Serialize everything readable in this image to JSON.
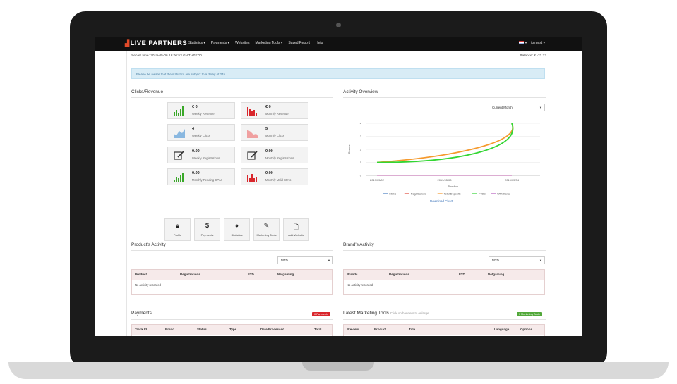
{
  "topnav": {
    "logo": "LIVE PARTNERS",
    "items": [
      "Statistics ▾",
      "Payments ▾",
      "Websites",
      "Marketing Tools ▾",
      "Saved Report",
      "Help"
    ],
    "user": "jointest ▾"
  },
  "header": {
    "server_time": "Server time: 2019-05-06 16:06:53 GMT +02:00",
    "balance": "Balance: € -21.73"
  },
  "alert": "Please be aware that the statistics are subject to a delay of 24h.",
  "clicks_revenue": {
    "title": "Clicks/Revenue",
    "stats": [
      {
        "value": "€ 0",
        "label": "Weekly Revenue",
        "color": "#3aa829"
      },
      {
        "value": "€ 0",
        "label": "Monthly Revenue",
        "color": "#d9262c"
      },
      {
        "value": "4",
        "label": "Weekly Clicks",
        "color": "#8ab8e0"
      },
      {
        "value": "5",
        "label": "Monthly Clicks",
        "color": "#f0a0a0"
      },
      {
        "value": "0.00",
        "label": "Weekly Registrations",
        "color": "#333333"
      },
      {
        "value": "0.00",
        "label": "Monthly Registrations",
        "color": "#333333"
      },
      {
        "value": "0.00",
        "label": "Monthly Pending CPAs",
        "color": "#3aa829"
      },
      {
        "value": "0.00",
        "label": "Monthly Valid CPAs",
        "color": "#d9262c"
      }
    ]
  },
  "quick_actions": [
    {
      "label": "Profile",
      "icon": "lock-icon"
    },
    {
      "label": "Payments",
      "icon": "dollar-icon"
    },
    {
      "label": "Statistics",
      "icon": "pie-chart-icon"
    },
    {
      "label": "Marketing Tools",
      "icon": "edit-icon"
    },
    {
      "label": "Add Website",
      "icon": "add-file-icon"
    }
  ],
  "activity": {
    "title": "Activity Overview",
    "period": "Current Month",
    "download": "Download Chart"
  },
  "chart_data": {
    "type": "line",
    "x": [
      "2019/05/02",
      "2019/05/03",
      "2019/05/04"
    ],
    "xlabel": "Timeline",
    "ylabel": "Counts",
    "yticks": [
      0,
      1,
      2,
      3,
      4
    ],
    "legend_position": "bottom",
    "series": [
      {
        "name": "Clicks",
        "color": "#4a7fc1",
        "values": [
          0,
          0,
          0
        ]
      },
      {
        "name": "Registrations",
        "color": "#e0483a",
        "values": [
          0,
          0,
          0
        ]
      },
      {
        "name": "Total Deposits",
        "color": "#f59a2e",
        "values": [
          1,
          1.6,
          4
        ]
      },
      {
        "name": "FTDS",
        "color": "#33d633",
        "values": [
          1,
          1.1,
          4
        ]
      },
      {
        "name": "Withdrawal",
        "color": "#b75dbf",
        "values": [
          0,
          0,
          0
        ]
      }
    ]
  },
  "product_activity": {
    "title": "Product's Activity",
    "period": "MTD",
    "columns": [
      "Product",
      "Registrations",
      "FTD",
      "Netgaming"
    ],
    "empty": "No activity recorded"
  },
  "brand_activity": {
    "title": "Brand's Activity",
    "period": "MTD",
    "columns": [
      "Brands",
      "Registrations",
      "FTD",
      "Netgaming"
    ],
    "empty": "No activity recorded"
  },
  "payments": {
    "title": "Payments",
    "badge": "0 Payments",
    "columns": [
      "Track Id",
      "Brand",
      "Status",
      "Type",
      "Date Processed",
      "Total"
    ]
  },
  "marketing_tools": {
    "title": "Latest Marketing Tools",
    "subtitle": "Click on banners to enlarge",
    "badge": "0 Marketing Tools",
    "columns": [
      "Preview",
      "Product",
      "Title",
      "Language",
      "Options"
    ]
  }
}
